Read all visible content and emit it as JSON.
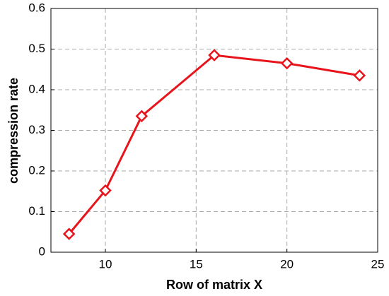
{
  "chart_data": {
    "type": "line",
    "x_label": "Row of matrix X",
    "y_label": "compression rate",
    "x": [
      8,
      10,
      12,
      16,
      20,
      24
    ],
    "series": [
      {
        "color": "#e8141b",
        "values": [
          0.045,
          0.152,
          0.335,
          0.485,
          0.465,
          0.435
        ]
      }
    ],
    "xlim": [
      7,
      25
    ],
    "xticks": [
      10,
      15,
      20,
      25
    ],
    "ylim": [
      0,
      0.6
    ],
    "yticks": [
      0,
      0.1,
      0.2,
      0.3,
      0.4,
      0.5,
      0.6
    ],
    "grid": true
  }
}
